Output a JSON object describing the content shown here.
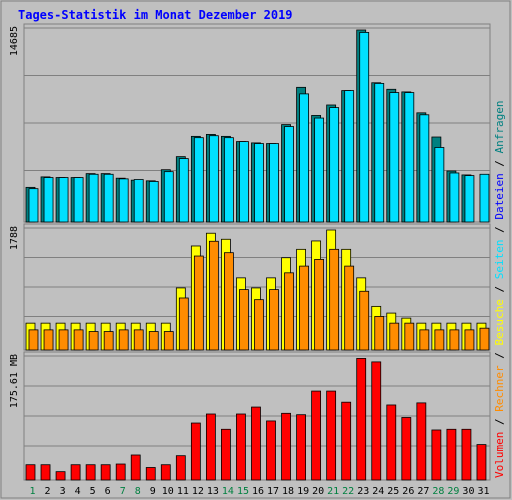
{
  "chart_data": {
    "type": "bar",
    "title": "Tages-Statistik im Monat Dezember 2019",
    "categories": [
      "1",
      "2",
      "3",
      "4",
      "5",
      "6",
      "7",
      "8",
      "9",
      "10",
      "11",
      "12",
      "13",
      "14",
      "15",
      "16",
      "17",
      "18",
      "19",
      "20",
      "21",
      "22",
      "23",
      "24",
      "25",
      "26",
      "27",
      "28",
      "29",
      "30",
      "31"
    ],
    "weekend_days": [
      "1",
      "7",
      "8",
      "14",
      "15",
      "21",
      "22",
      "28",
      "29"
    ],
    "panels": {
      "top": {
        "max_label": "14685",
        "ymax": 14685,
        "series": [
          {
            "name": "Anfragen",
            "color": "#008080",
            "values": [
              2650,
              3450,
              3400,
              3400,
              3700,
              3700,
              3350,
              3200,
              3150,
              4000,
              5000,
              6550,
              6700,
              6550,
              6150,
              6050,
              6000,
              7450,
              10300,
              8150,
              8950,
              10050,
              14685,
              10650,
              10150,
              9950,
              8350,
              6500,
              3900,
              3600,
              0
            ]
          },
          {
            "name": "Dateien",
            "color": "#00e0ff",
            "values": [
              2550,
              3400,
              3400,
              3400,
              3650,
              3650,
              3300,
              3250,
              3100,
              3850,
              4850,
              6450,
              6600,
              6450,
              6150,
              6000,
              6000,
              7300,
              9800,
              7950,
              8750,
              10050,
              14500,
              10600,
              9900,
              9900,
              8200,
              5700,
              3750,
              3550,
              3650
            ]
          }
        ]
      },
      "middle": {
        "max_label": "1788",
        "ymax": 1788,
        "series": [
          {
            "name": "Seiten",
            "color": "#ffff00",
            "values": [
              400,
              400,
              400,
              400,
              400,
              400,
              400,
              400,
              400,
              400,
              925,
              1550,
              1740,
              1650,
              1075,
              925,
              1075,
              1375,
              1500,
              1625,
              1788,
              1500,
              1075,
              650,
              550,
              475,
              400,
              400,
              400,
              400,
              400
            ]
          },
          {
            "name": "Besuche",
            "color": "#ff8c00",
            "values": [
              300,
              300,
              300,
              300,
              275,
              275,
              300,
              300,
              275,
              275,
              775,
              1400,
              1620,
              1450,
              900,
              750,
              900,
              1150,
              1250,
              1350,
              1500,
              1250,
              875,
              500,
              400,
              400,
              300,
              300,
              300,
              300,
              325
            ]
          }
        ]
      },
      "bottom": {
        "max_label": "175.61 MB",
        "ymax": 175.61,
        "series": [
          {
            "name": "Volumen",
            "color": "#ff0000",
            "values": [
              22,
              22,
              12,
              22,
              22,
              22,
              23,
              36,
              18,
              22,
              35,
              82,
              95,
              73,
              95,
              105,
              85,
              96,
              94,
              128,
              128,
              112,
              175,
              170,
              108,
              90,
              111,
              72,
              73,
              73,
              51
            ]
          }
        ]
      }
    },
    "legend": [
      "Volumen",
      "Rechner",
      "Besuche",
      "Seiten",
      "Dateien",
      "Anfragen"
    ],
    "legend_colors": [
      "#ff0000",
      "#ff8c00",
      "#ffff00",
      "#00e0ff",
      "#0000ff",
      "#008080"
    ],
    "legend_placement": "right, vertical"
  }
}
